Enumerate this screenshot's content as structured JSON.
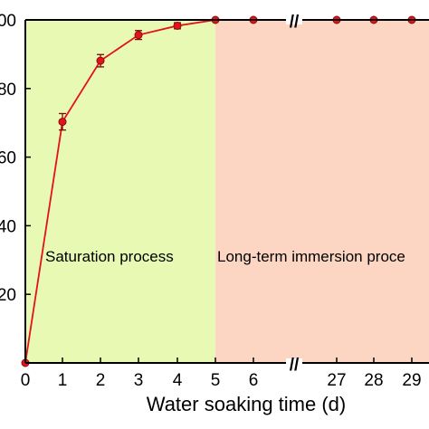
{
  "chart_data": {
    "type": "line",
    "title": "",
    "xlabel": "Water soaking time (d)",
    "ylabel": "",
    "ylim": [
      0,
      100
    ],
    "x_ticks": [
      "0",
      "1",
      "2",
      "3",
      "4",
      "5",
      "6",
      "27",
      "28",
      "29"
    ],
    "y_ticks": [
      "00",
      "80",
      "60",
      "40",
      "20"
    ],
    "axis_break_symbol": "//",
    "grid": false,
    "legend": "none",
    "regions": [
      {
        "label": "Saturation process",
        "x_start": 0,
        "x_end": 5,
        "color": "#e8f9b4"
      },
      {
        "label": "Long-term immersion proce",
        "x_start": 5,
        "x_end": 29,
        "color": "#fcd6c3"
      }
    ],
    "series": [
      {
        "color": "#e3121b",
        "x": [
          "0",
          "1",
          "2",
          "3",
          "4",
          "5",
          "6",
          "27",
          "28",
          "29"
        ],
        "y": [
          0,
          70.3,
          88.1,
          95.6,
          98.3,
          100,
          100,
          100,
          100,
          100
        ],
        "error": [
          0,
          2.4,
          1.8,
          1.3,
          0.9,
          0,
          0,
          0,
          0,
          0
        ]
      }
    ]
  }
}
